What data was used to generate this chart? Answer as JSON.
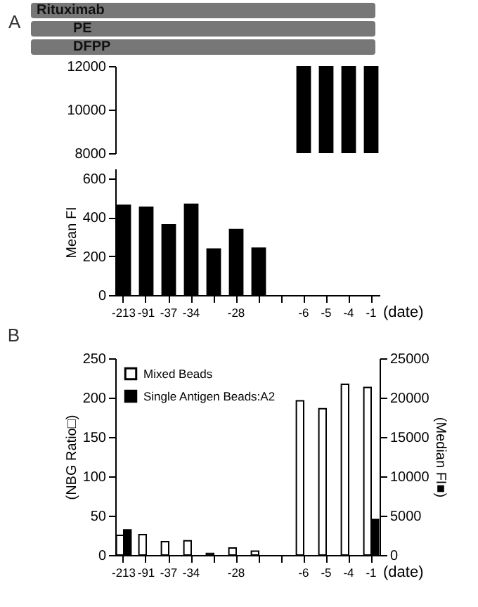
{
  "chart_data": [
    {
      "type": "bar",
      "title": "A",
      "annotations": [
        "Rituximab",
        "PE",
        "DFPP"
      ],
      "categories": [
        "-213",
        "-91",
        "-37",
        "-34",
        null,
        "-28",
        null,
        null,
        "-6",
        "-5",
        "-4",
        "-1"
      ],
      "values": [
        null,
        null,
        null,
        null,
        null,
        null,
        null,
        null,
        12000,
        12000,
        12000,
        12000
      ],
      "color": "#000000",
      "ylim": [
        8000,
        12000
      ],
      "yticks": [
        8000,
        10000,
        12000
      ],
      "tick_labels": "y",
      "grid": false
    },
    {
      "type": "bar",
      "ylabel": "Mean FI",
      "xlabel": "(date)",
      "categories": [
        "-213",
        "-91",
        "-37",
        "-34",
        null,
        "-28",
        null,
        null,
        "-6",
        "-5",
        "-4",
        "-1"
      ],
      "values": [
        465,
        455,
        365,
        470,
        240,
        340,
        245,
        null,
        null,
        null,
        null,
        null
      ],
      "color": "#000000",
      "ylim": [
        0,
        650
      ],
      "yticks": [
        0,
        200,
        400,
        600
      ],
      "grid": false
    },
    {
      "type": "bar",
      "title": "B",
      "ylabel": "(NBG Ratio□)",
      "y2label": "(Median FI■)",
      "xlabel": "(date)",
      "categories": [
        "-213",
        "-91",
        "-37",
        "-34",
        null,
        "-28",
        null,
        null,
        "-6",
        "-5",
        "-4",
        "-1"
      ],
      "series": [
        {
          "name": "Mixed Beads",
          "color": "#ffffff",
          "values": [
            25,
            26,
            17,
            18,
            2,
            9,
            5,
            null,
            196,
            186,
            217,
            213
          ]
        },
        {
          "name": "Single Antigen Beads:A2",
          "color": "#000000",
          "axis": "y2",
          "values": [
            3200,
            null,
            null,
            null,
            null,
            null,
            null,
            null,
            null,
            null,
            null,
            4500
          ]
        }
      ],
      "ylim": [
        0,
        250
      ],
      "yticks": [
        0,
        50,
        100,
        150,
        200,
        250
      ],
      "y2lim": [
        0,
        25000
      ],
      "y2ticks": [
        0,
        5000,
        10000,
        15000,
        20000,
        25000
      ],
      "legend": "top left",
      "grid": false
    }
  ]
}
